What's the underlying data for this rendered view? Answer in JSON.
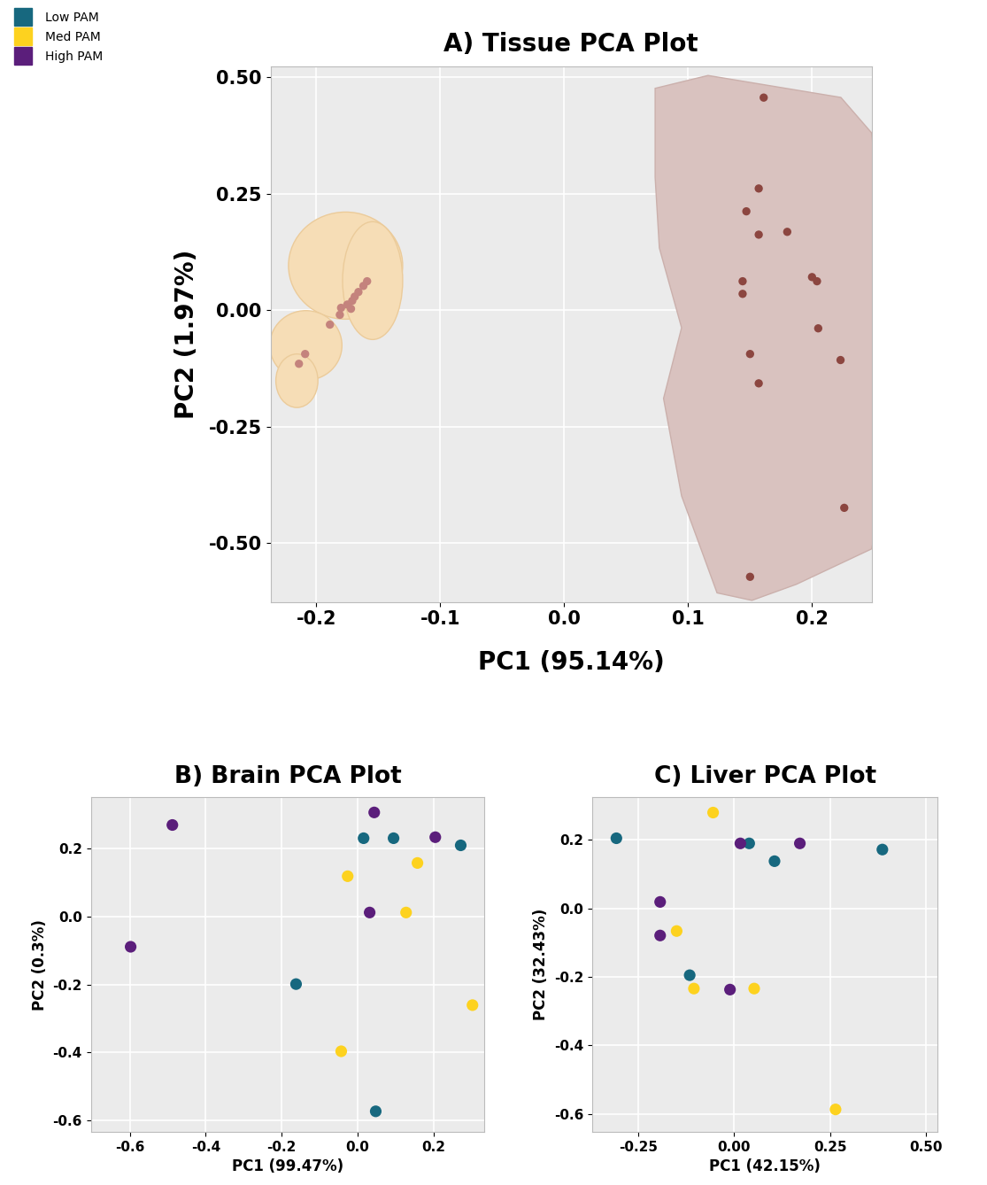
{
  "chart_data": [
    {
      "type": "scatter",
      "title": "A) Tissue PCA Plot",
      "x_label": "PC1 (95.14%)",
      "y_label": "PC2 (1.97%)",
      "xlim": [
        -0.237,
        0.248
      ],
      "ylim": [
        -0.626,
        0.523
      ],
      "xticks": [
        -0.2,
        -0.1,
        {
          "value": 0,
          "label": "0.0"
        },
        0.1,
        0.2
      ],
      "yticks": [
        {
          "value": 0.5,
          "label": "0.50"
        },
        0.25,
        {
          "value": 0,
          "label": "0.00"
        },
        -0.25,
        {
          "value": -0.5,
          "label": "-0.50"
        }
      ],
      "grid": true,
      "series": [
        {
          "color": "#C4837D",
          "x": [
            -0.159,
            -0.162,
            -0.166,
            -0.169,
            -0.171,
            -0.175,
            -0.18,
            -0.181,
            -0.172,
            -0.189,
            -0.209,
            -0.214
          ],
          "y": [
            0.062,
            0.052,
            0.039,
            0.029,
            0.02,
            0.012,
            0.005,
            -0.01,
            0.003,
            -0.031,
            -0.094,
            -0.115
          ]
        },
        {
          "color": "#8C4640",
          "x": [
            0.161,
            0.157,
            0.147,
            0.157,
            0.18,
            0.144,
            0.144,
            0.2,
            0.204,
            0.205,
            0.15,
            0.223,
            0.157,
            0.226,
            0.15
          ],
          "y": [
            0.456,
            0.261,
            0.212,
            0.162,
            0.168,
            0.062,
            0.035,
            0.071,
            0.062,
            -0.039,
            -0.094,
            -0.107,
            -0.157,
            -0.424,
            -0.572
          ]
        }
      ]
    },
    {
      "type": "scatter",
      "title": "B) Brain PCA Plot",
      "x_label": "PC1 (99.47%)",
      "y_label": "PC2 (0.3%)",
      "xlim": [
        -0.703,
        0.335
      ],
      "ylim": [
        -0.634,
        0.351
      ],
      "xticks": [
        -0.6,
        -0.4,
        -0.2,
        {
          "value": 0,
          "label": "0.0"
        },
        0.2
      ],
      "yticks": [
        0.2,
        {
          "value": 0,
          "label": "0.0"
        },
        -0.2,
        -0.4,
        -0.6
      ],
      "grid": true,
      "legend": "upper left",
      "series": [
        {
          "name": "Low PAM",
          "color": "#17687F",
          "x": [
            0.016,
            0.095,
            0.272,
            -0.162,
            0.048
          ],
          "y": [
            0.231,
            0.231,
            0.21,
            -0.199,
            -0.574
          ]
        },
        {
          "name": "Med PAM",
          "color": "#FDD21F",
          "x": [
            -0.026,
            0.158,
            0.128,
            0.303,
            -0.043
          ],
          "y": [
            0.119,
            0.158,
            0.012,
            -0.261,
            -0.397
          ]
        },
        {
          "name": "High PAM",
          "color": "#5B1E7B",
          "x": [
            -0.598,
            -0.488,
            0.044,
            0.205,
            0.032
          ],
          "y": [
            -0.089,
            0.27,
            0.307,
            0.234,
            0.012
          ]
        }
      ]
    },
    {
      "type": "scatter",
      "title": "C) Liver PCA Plot",
      "x_label": "PC1 (42.15%)",
      "y_label": "PC2 (32.43%)",
      "xlim": [
        -0.37,
        0.53
      ],
      "ylim": [
        -0.652,
        0.324
      ],
      "xticks": [
        -0.25,
        {
          "value": 0,
          "label": "0.00"
        },
        0.25,
        {
          "value": 0.5,
          "label": "0.50"
        }
      ],
      "yticks": [
        0.2,
        {
          "value": 0,
          "label": "0.0"
        },
        -0.2,
        -0.4,
        -0.6
      ],
      "grid": true,
      "series": [
        {
          "name": "Low PAM",
          "color": "#17687F",
          "x": [
            -0.307,
            0.039,
            0.105,
            -0.116,
            0.386
          ],
          "y": [
            0.205,
            0.19,
            0.138,
            -0.195,
            0.172
          ]
        },
        {
          "name": "Med PAM",
          "color": "#FDD21F",
          "x": [
            -0.055,
            -0.15,
            -0.105,
            0.052,
            0.264
          ],
          "y": [
            0.28,
            -0.066,
            -0.234,
            -0.234,
            -0.587
          ]
        },
        {
          "name": "High PAM",
          "color": "#5B1E7B",
          "x": [
            0.016,
            0.171,
            -0.193,
            -0.193,
            -0.011
          ],
          "y": [
            0.19,
            0.19,
            0.019,
            -0.079,
            -0.237
          ]
        }
      ]
    }
  ]
}
